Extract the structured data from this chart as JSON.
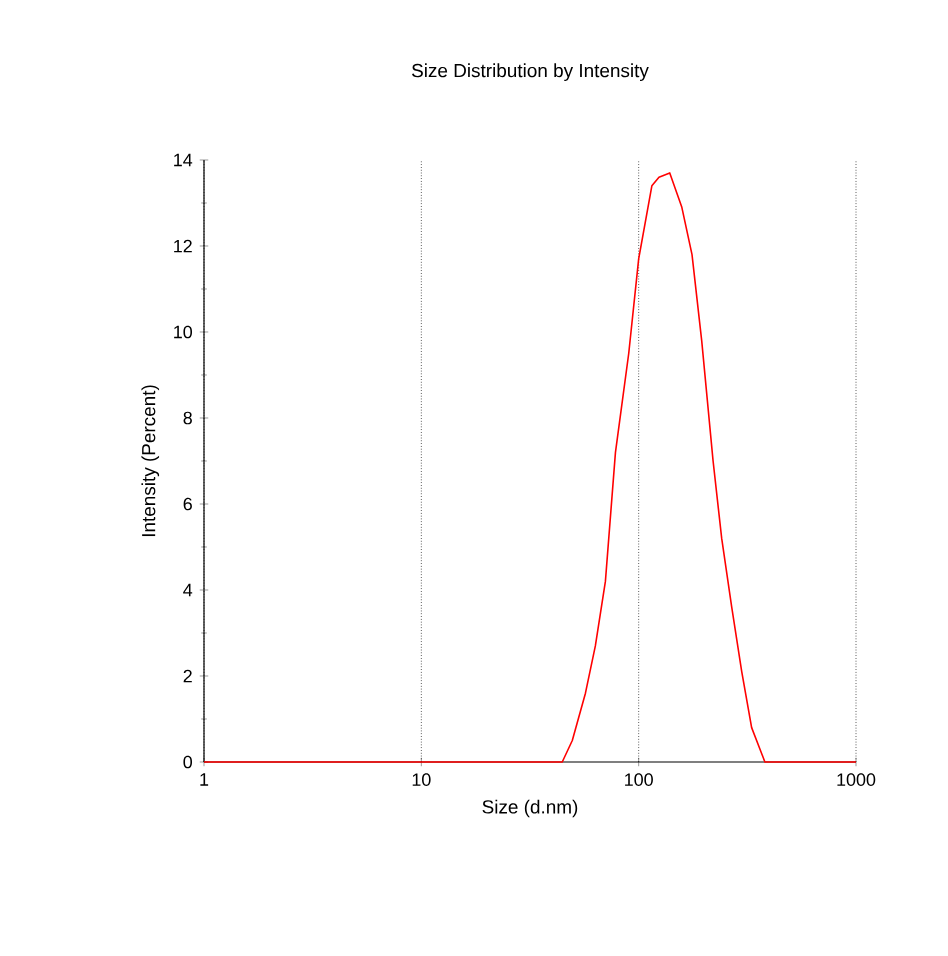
{
  "chart_data": {
    "type": "line",
    "title": "Size Distribution by Intensity",
    "xlabel": "Size (d.nm)",
    "ylabel": "Intensity (Percent)",
    "log": "x",
    "grid": "x",
    "marker": "none",
    "line_style": "solid",
    "xlim": [
      1,
      1000
    ],
    "xticks": [
      1,
      10,
      100,
      1000
    ],
    "ylim": [
      0,
      14
    ],
    "yticks": [
      0,
      2,
      4,
      6,
      8,
      10,
      12,
      14
    ],
    "series": [
      {
        "color": "#ff0000",
        "x": [
          1,
          44.5,
          49.5,
          56.9,
          63.2,
          70.3,
          78.2,
          90,
          100,
          115,
          124,
          139,
          158,
          176,
          195,
          220,
          241,
          268,
          298,
          331,
          381,
          1000
        ],
        "values": [
          0,
          0,
          0.5,
          1.6,
          2.7,
          4.2,
          7.2,
          9.5,
          11.7,
          13.4,
          13.6,
          13.7,
          12.9,
          11.8,
          9.8,
          7.0,
          5.2,
          3.6,
          2.1,
          0.8,
          0,
          0
        ]
      }
    ]
  }
}
